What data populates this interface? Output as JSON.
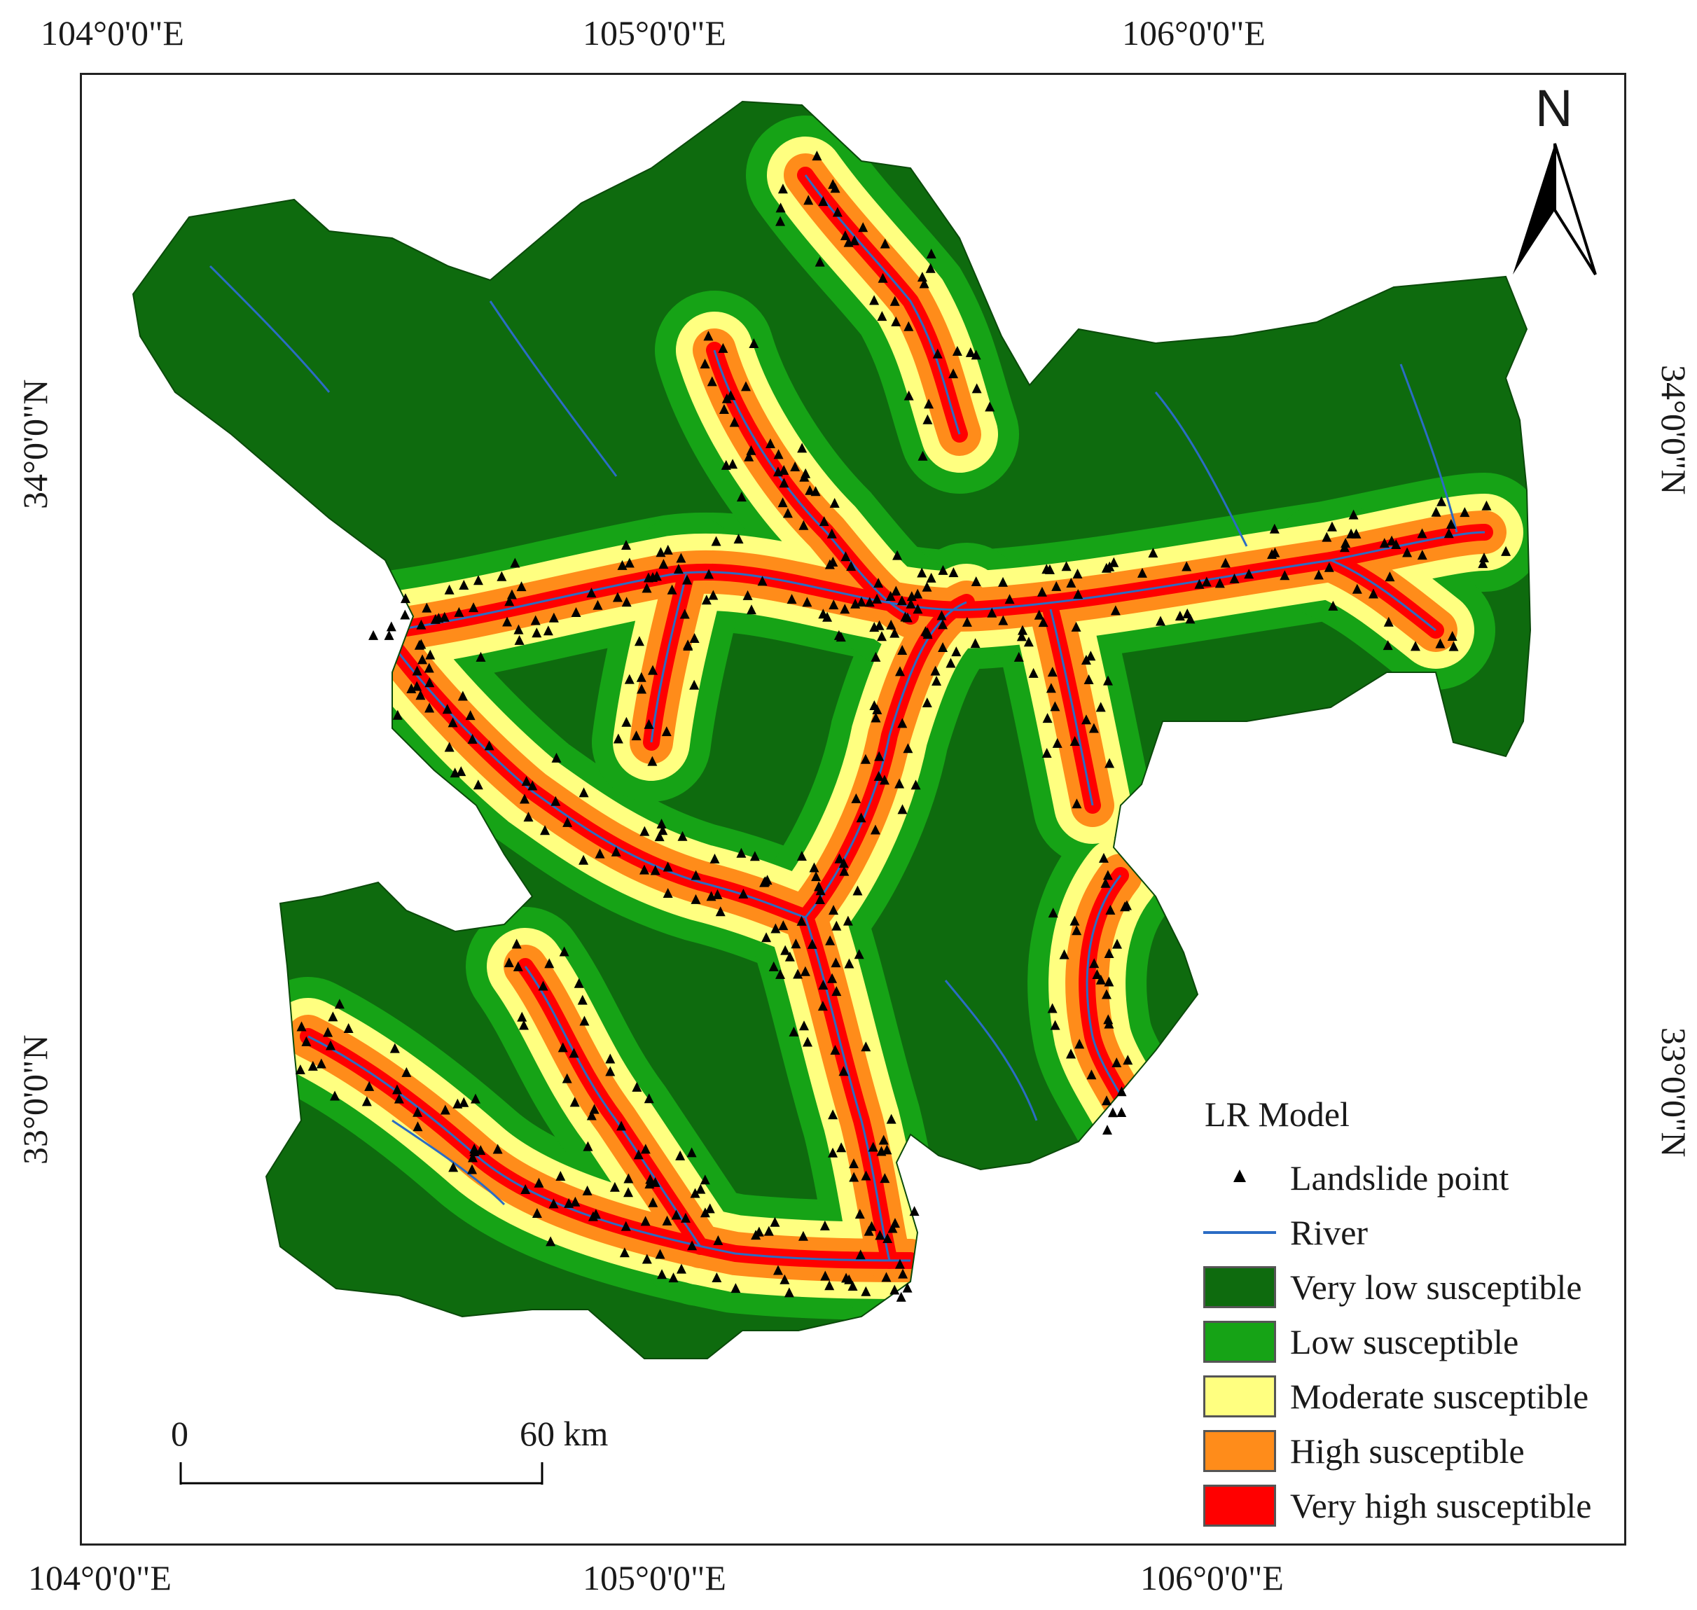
{
  "axes": {
    "top_longitudes": [
      "104°0'0\"E",
      "105°0'0\"E",
      "106°0'0\"E"
    ],
    "bottom_longitudes": [
      "104°0'0\"E",
      "105°0'0\"E",
      "106°0'0\"E"
    ],
    "left_latitudes": [
      "34°0'0\"N",
      "33°0'0\"N"
    ],
    "right_latitudes": [
      "34°0'0\"N",
      "33°0'0\"N"
    ]
  },
  "north_arrow": {
    "label": "N",
    "icon": "north-arrow-icon"
  },
  "scale_bar": {
    "start_label": "0",
    "end_label": "60 km"
  },
  "legend": {
    "title": "LR Model",
    "items": [
      {
        "label": "Landslide point",
        "kind": "point",
        "color": "#000000"
      },
      {
        "label": "River",
        "kind": "line",
        "color": "#2b6cc4"
      },
      {
        "label": "Very low susceptible",
        "kind": "fill",
        "color": "#0e6b0e"
      },
      {
        "label": "Low susceptible",
        "kind": "fill",
        "color": "#16a316"
      },
      {
        "label": "Moderate susceptible",
        "kind": "fill",
        "color": "#ffff80"
      },
      {
        "label": "High susceptible",
        "kind": "fill",
        "color": "#ff8c1a"
      },
      {
        "label": "Very high susceptible",
        "kind": "fill",
        "color": "#ff0000"
      }
    ]
  },
  "colors": {
    "very_low": "#0e6b0e",
    "low": "#16a316",
    "moderate": "#ffff80",
    "high": "#ff8c1a",
    "very_high": "#ff0000",
    "river": "#2b6cc4",
    "point": "#000000"
  }
}
